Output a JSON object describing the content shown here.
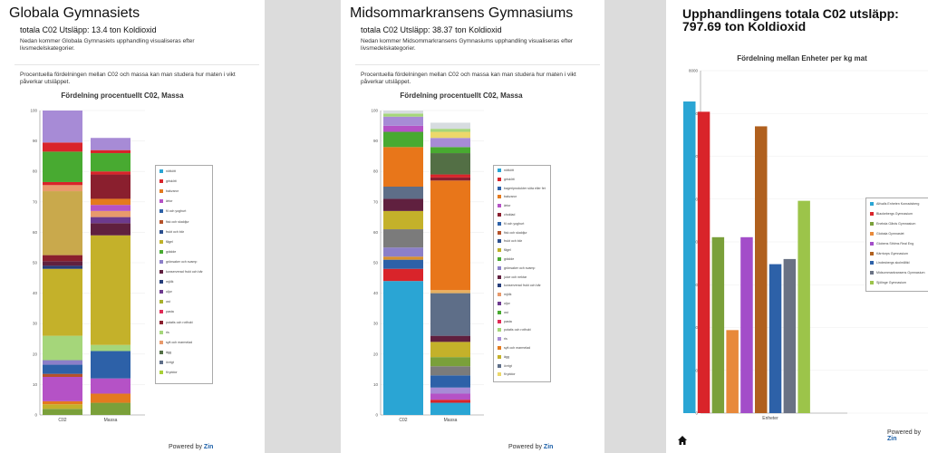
{
  "panel1": {
    "title": "Globala Gymnasiets",
    "subtitle": "totala C02 Utsläpp: 13.4 ton Koldioxid",
    "desc": "Nedan kommer Globala Gymnasiets upphandling visualiseras efter livsmedelskategorier.",
    "desc2": "Procentuella fördelningen mellan C02 och massa kan man studera hur maten i vikt påverkar utsläppet.",
    "powered": "Powered by",
    "brand": "Zin"
  },
  "panel2": {
    "title": "Midsommarkransens Gymnasiums",
    "subtitle": "totala C02 Utsläpp: 38.37 ton Koldioxid",
    "desc": "Nedan kommer Midsommarkransens Gymnasiums upphandling visualiseras efter livsmedelskategorier.",
    "desc2": "Procentuella fördelningen mellan C02 och massa kan man studera hur maten i vikt påverkar utsläppet.",
    "powered": "Powered by",
    "brand": "Zin"
  },
  "panel3": {
    "title": "Upphandlingens totala C02 utsläpp: 797.69 ton Koldioxid",
    "powered": "Powered by",
    "brand": "Zin",
    "home_icon": "home-icon"
  },
  "chart_data": [
    {
      "type": "bar",
      "stacked": true,
      "title": "Fördelning procentuellt C02, Massa",
      "categories": [
        "C02",
        "Massa"
      ],
      "ylim": [
        0,
        100
      ],
      "yticks": [
        0,
        10,
        20,
        30,
        40,
        50,
        60,
        70,
        80,
        90,
        100
      ],
      "legend_position": "right",
      "series": [
        {
          "name": "nötkött",
          "color": "#2aa5d4",
          "values": [
            0,
            0
          ]
        },
        {
          "name": "griskött",
          "color": "#d9242a",
          "values": [
            0,
            0
          ]
        },
        {
          "name": "bakvaror",
          "color": "#e47a1e",
          "values": [
            0,
            0
          ]
        },
        {
          "name": "ärtor",
          "color": "#b552c6",
          "values": [
            0,
            0
          ]
        },
        {
          "name": "fil och yoghurt",
          "color": "#2d61a8",
          "values": [
            0,
            0
          ]
        },
        {
          "name": "fisk och skaldjur",
          "color": "#b5522a",
          "values": [
            0,
            0
          ]
        },
        {
          "name": "frukt och bär",
          "color": "#2c4f8e",
          "values": [
            0,
            0
          ]
        },
        {
          "name": "fågel",
          "color": "#bfb129",
          "values": [
            0,
            0
          ]
        },
        {
          "name": "grädde",
          "color": "#48aa31",
          "values": [
            0,
            0
          ]
        },
        {
          "name": "grönsaker och svamp",
          "color": "#8b7fc8",
          "values": [
            0,
            0
          ]
        },
        {
          "name": "konserverad frukt och bär",
          "color": "#60203f",
          "values": [
            0,
            0
          ]
        },
        {
          "name": "mjölk",
          "color": "#263d7a",
          "values": [
            0,
            0
          ]
        },
        {
          "name": "oljor",
          "color": "#6d3a8e",
          "values": [
            0,
            0
          ]
        },
        {
          "name": "ost",
          "color": "#a8b02c",
          "values": [
            0,
            0
          ]
        },
        {
          "name": "pasta",
          "color": "#e02b56",
          "values": [
            0,
            0
          ]
        },
        {
          "name": "potatis och rotfrukt",
          "color": "#8a1f2e",
          "values": [
            0,
            0
          ]
        },
        {
          "name": "ris",
          "color": "#a5d67a",
          "values": [
            0,
            0
          ]
        },
        {
          "name": "sylt och marmelad",
          "color": "#e89a6c",
          "values": [
            0,
            0
          ]
        },
        {
          "name": "ägg",
          "color": "#536f45",
          "values": [
            0,
            0
          ]
        },
        {
          "name": "övrigt",
          "color": "#5e6e88",
          "values": [
            0,
            0
          ]
        },
        {
          "name": "Kryddor",
          "color": "#a8cf36",
          "values": [
            0,
            0
          ]
        }
      ],
      "segments": {
        "C02": [
          {
            "color": "#7aa03a",
            "value": 2
          },
          {
            "color": "#c4b12a",
            "value": 1.5
          },
          {
            "color": "#e47a1e",
            "value": 1
          },
          {
            "color": "#b552c6",
            "value": 8
          },
          {
            "color": "#b5522a",
            "value": 1
          },
          {
            "color": "#2d61a8",
            "value": 3
          },
          {
            "color": "#8b7fc8",
            "value": 1.5
          },
          {
            "color": "#a5d67a",
            "value": 8
          },
          {
            "color": "#c4b12a",
            "value": 22
          },
          {
            "color": "#263d7a",
            "value": 1
          },
          {
            "color": "#60203f",
            "value": 1.5
          },
          {
            "color": "#8a1f2e",
            "value": 2
          },
          {
            "color": "#c9a94c",
            "value": 21
          },
          {
            "color": "#e89a6c",
            "value": 2
          },
          {
            "color": "#d9242a",
            "value": 1
          },
          {
            "color": "#48aa31",
            "value": 10
          },
          {
            "color": "#d9242a",
            "value": 3
          },
          {
            "color": "#a78bd6",
            "value": 10.5
          }
        ],
        "Massa": [
          {
            "color": "#7aa03a",
            "value": 4
          },
          {
            "color": "#e47a1e",
            "value": 3
          },
          {
            "color": "#b552c6",
            "value": 5
          },
          {
            "color": "#2d61a8",
            "value": 9
          },
          {
            "color": "#a5d67a",
            "value": 2
          },
          {
            "color": "#c4b12a",
            "value": 36
          },
          {
            "color": "#60203f",
            "value": 4
          },
          {
            "color": "#6d3a8e",
            "value": 2
          },
          {
            "color": "#e89a6c",
            "value": 2
          },
          {
            "color": "#b552c6",
            "value": 2
          },
          {
            "color": "#e47a1e",
            "value": 2
          },
          {
            "color": "#8a1f2e",
            "value": 8
          },
          {
            "color": "#d9242a",
            "value": 1
          },
          {
            "color": "#48aa31",
            "value": 6
          },
          {
            "color": "#d9242a",
            "value": 1
          },
          {
            "color": "#a78bd6",
            "value": 4
          }
        ]
      }
    },
    {
      "type": "bar",
      "stacked": true,
      "title": "Fördelning procentuellt C02, Massa",
      "categories": [
        "C02",
        "Massa"
      ],
      "ylim": [
        0,
        100
      ],
      "yticks": [
        0,
        10,
        20,
        30,
        40,
        50,
        60,
        70,
        80,
        90,
        100
      ],
      "legend_position": "right",
      "series": [
        {
          "name": "nötkött",
          "color": "#2aa5d4",
          "values": [
            0,
            0
          ]
        },
        {
          "name": "griskött",
          "color": "#d9242a",
          "values": [
            0,
            0
          ]
        },
        {
          "name": "bageriprodukter söta eller fet",
          "color": "#2d61a8",
          "values": [
            0,
            0
          ]
        },
        {
          "name": "bakvaror",
          "color": "#e47a1e",
          "values": [
            0,
            0
          ]
        },
        {
          "name": "ärtor",
          "color": "#b552c6",
          "values": [
            0,
            0
          ]
        },
        {
          "name": "choklad",
          "color": "#8a1f2e",
          "values": [
            0,
            0
          ]
        },
        {
          "name": "fil och yoghurt",
          "color": "#2d61a8",
          "values": [
            0,
            0
          ]
        },
        {
          "name": "fisk och skaldjur",
          "color": "#b5522a",
          "values": [
            0,
            0
          ]
        },
        {
          "name": "frukt och bär",
          "color": "#2c4f8e",
          "values": [
            0,
            0
          ]
        },
        {
          "name": "fågel",
          "color": "#bfb129",
          "values": [
            0,
            0
          ]
        },
        {
          "name": "grädde",
          "color": "#48aa31",
          "values": [
            0,
            0
          ]
        },
        {
          "name": "grönsaker och svamp",
          "color": "#8b7fc8",
          "values": [
            0,
            0
          ]
        },
        {
          "name": "juice och nektar",
          "color": "#60203f",
          "values": [
            0,
            0
          ]
        },
        {
          "name": "konserverad frukt och bär",
          "color": "#263d7a",
          "values": [
            0,
            0
          ]
        },
        {
          "name": "mjölk",
          "color": "#e89a6c",
          "values": [
            0,
            0
          ]
        },
        {
          "name": "oljor",
          "color": "#6d3a8e",
          "values": [
            0,
            0
          ]
        },
        {
          "name": "ost",
          "color": "#48aa31",
          "values": [
            0,
            0
          ]
        },
        {
          "name": "pasta",
          "color": "#e02b56",
          "values": [
            0,
            0
          ]
        },
        {
          "name": "potatis och rotfrukt",
          "color": "#a5d67a",
          "values": [
            0,
            0
          ]
        },
        {
          "name": "ris",
          "color": "#a78bd6",
          "values": [
            0,
            0
          ]
        },
        {
          "name": "sylt och marmelad",
          "color": "#e47a1e",
          "values": [
            0,
            0
          ]
        },
        {
          "name": "ägg",
          "color": "#c4b12a",
          "values": [
            0,
            0
          ]
        },
        {
          "name": "övrigt",
          "color": "#5e6e88",
          "values": [
            0,
            0
          ]
        },
        {
          "name": "Kryddor",
          "color": "#ecd86a",
          "values": [
            0,
            0
          ]
        }
      ],
      "segments": {
        "C02": [
          {
            "color": "#2aa5d4",
            "value": 44
          },
          {
            "color": "#d9242a",
            "value": 4
          },
          {
            "color": "#2d61a8",
            "value": 3
          },
          {
            "color": "#d9902a",
            "value": 1
          },
          {
            "color": "#8b7fc8",
            "value": 3
          },
          {
            "color": "#7b7b7b",
            "value": 6
          },
          {
            "color": "#c4b12a",
            "value": 6
          },
          {
            "color": "#60203f",
            "value": 4
          },
          {
            "color": "#5e6e88",
            "value": 4
          },
          {
            "color": "#e8761a",
            "value": 13
          },
          {
            "color": "#48aa31",
            "value": 5
          },
          {
            "color": "#b552c6",
            "value": 2
          },
          {
            "color": "#a78bd6",
            "value": 3
          },
          {
            "color": "#a5d67a",
            "value": 1
          },
          {
            "color": "#d7dce0",
            "value": 1
          }
        ],
        "Massa": [
          {
            "color": "#2aa5d4",
            "value": 4
          },
          {
            "color": "#d9242a",
            "value": 1
          },
          {
            "color": "#b552c6",
            "value": 2
          },
          {
            "color": "#a78bd6",
            "value": 2
          },
          {
            "color": "#2d61a8",
            "value": 4
          },
          {
            "color": "#7b7b7b",
            "value": 3
          },
          {
            "color": "#7aa03a",
            "value": 3
          },
          {
            "color": "#c4b12a",
            "value": 5
          },
          {
            "color": "#60203f",
            "value": 2
          },
          {
            "color": "#5e6e88",
            "value": 14
          },
          {
            "color": "#e8b060",
            "value": 1
          },
          {
            "color": "#e8761a",
            "value": 36
          },
          {
            "color": "#8a1f2e",
            "value": 1
          },
          {
            "color": "#d9242a",
            "value": 1
          },
          {
            "color": "#536f45",
            "value": 7
          },
          {
            "color": "#48aa31",
            "value": 2
          },
          {
            "color": "#a78bd6",
            "value": 3
          },
          {
            "color": "#ecd86a",
            "value": 2
          },
          {
            "color": "#a5d67a",
            "value": 1
          },
          {
            "color": "#d7dce0",
            "value": 2
          }
        ]
      }
    },
    {
      "type": "bar",
      "title": "Fördelning mellan Enheter per kg mat",
      "categories": [
        "Enheter"
      ],
      "ylim": [
        0,
        8000
      ],
      "yticks": [
        0,
        1000,
        2000,
        3000,
        4000,
        5000,
        6000,
        7000,
        8000
      ],
      "legend_position": "right",
      "series": [
        {
          "name": "Alfvalls Enheten Konradsberg",
          "color": "#2aa5d4",
          "values": [
            7280
          ]
        },
        {
          "name": "Blackebergs Gymnasium",
          "color": "#d9242a",
          "values": [
            7040
          ]
        },
        {
          "name": "Enebda Gårds Gymnasium",
          "color": "#7aa03a",
          "values": [
            4110
          ]
        },
        {
          "name": "Globala Gymnasiet",
          "color": "#e8893a",
          "values": [
            1940
          ]
        },
        {
          "name": "Globens Sthlms Real Eng",
          "color": "#a34dc9",
          "values": [
            4110
          ]
        },
        {
          "name": "Kärrtorps Gymnasium",
          "color": "#b0601e",
          "values": [
            6700
          ]
        },
        {
          "name": "Lindesbergs skolmåltid",
          "color": "#2d61a8",
          "values": [
            3480
          ]
        },
        {
          "name": "Midsommarkransens Gymnasium",
          "color": "#6a7284",
          "values": [
            3600
          ]
        },
        {
          "name": "Sjölinge Gymnasium",
          "color": "#9cc44a",
          "values": [
            4960
          ]
        }
      ]
    }
  ]
}
